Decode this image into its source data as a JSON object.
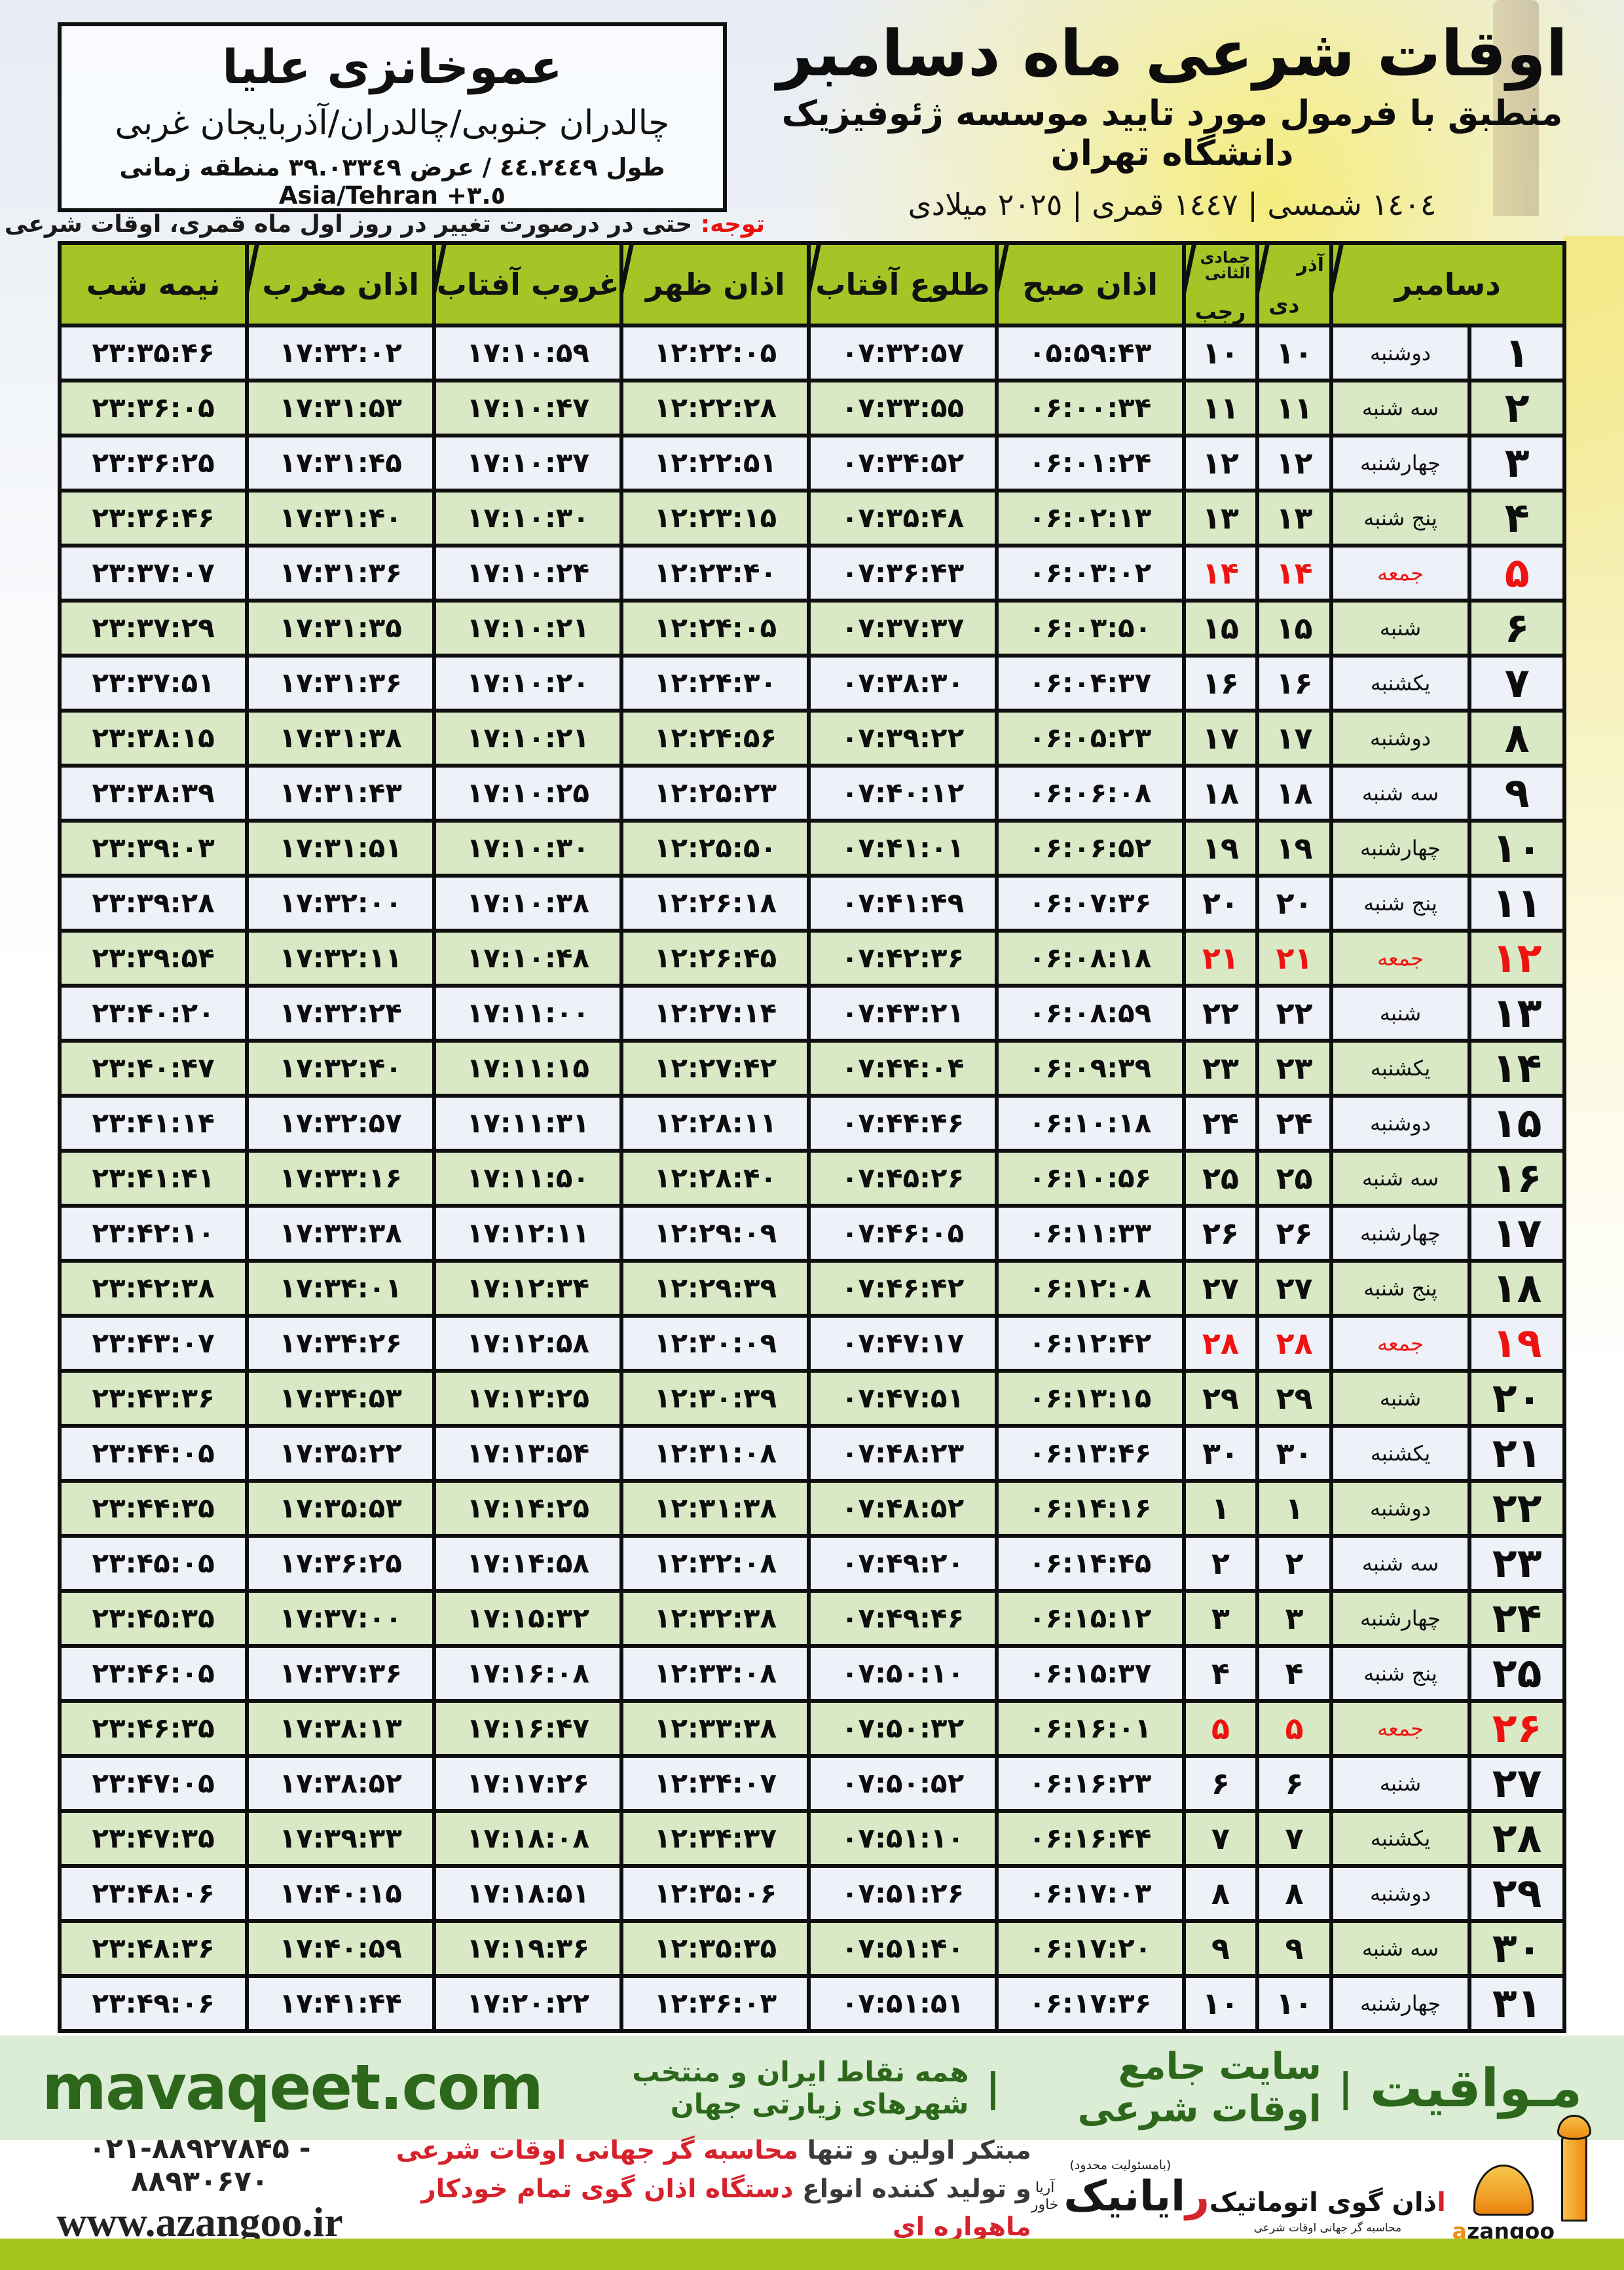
{
  "header": {
    "title": "اوقات شرعی ماه دسامبر",
    "subtitle": "منطبق با فرمول مورد تایید موسسه ژئوفیزیک دانشگاه تهران",
    "calendar_line": "١٤٠٤ شمسی | ١٤٤٧ قمری | ٢٠٢٥ میلادی"
  },
  "location_box": {
    "name": "عموخانزی علیا",
    "region": "چالدران جنوبی/چالدران/آذربایجان غربی",
    "coords": "طول ٤٤.٢٤٤٩ / عرض ٣٩.٠٣٣٤٩ منطقه زمانی",
    "timezone": "Asia/Tehran +٣.٥"
  },
  "note": {
    "label": "توجه:",
    "text": " حتی در درصورت تغییر در روز اول ماه قمری، اوقات شرعی کماکان برای روزهای شمسی و میلادی معتبر است."
  },
  "table": {
    "headers": {
      "december": "دسامبر",
      "persian_months": [
        "آذر",
        "دی"
      ],
      "hijri_months": [
        "جمادی الثانی",
        "رجب"
      ],
      "fajr": "اذان صبح",
      "sunrise": "طلوع آفتاب",
      "dhuhr": "اذان ظهر",
      "sunset": "غروب آفتاب",
      "maghrib": "اذان مغرب",
      "midnight": "نیمه شب"
    },
    "rows": [
      {
        "day": 1,
        "weekday": "دوشنبه",
        "persian": 10,
        "hijri": 10,
        "fajr": "05:59:43",
        "sunrise": "07:32:57",
        "dhuhr": "12:22:05",
        "sunset": "17:10:59",
        "maghrib": "17:32:02",
        "midnight": "23:35:46",
        "friday": false
      },
      {
        "day": 2,
        "weekday": "سه شنبه",
        "persian": 11,
        "hijri": 11,
        "fajr": "06:00:34",
        "sunrise": "07:33:55",
        "dhuhr": "12:22:28",
        "sunset": "17:10:47",
        "maghrib": "17:31:53",
        "midnight": "23:36:05",
        "friday": false
      },
      {
        "day": 3,
        "weekday": "چهارشنبه",
        "persian": 12,
        "hijri": 12,
        "fajr": "06:01:24",
        "sunrise": "07:34:52",
        "dhuhr": "12:22:51",
        "sunset": "17:10:37",
        "maghrib": "17:31:45",
        "midnight": "23:36:25",
        "friday": false
      },
      {
        "day": 4,
        "weekday": "پنج شنبه",
        "persian": 13,
        "hijri": 13,
        "fajr": "06:02:13",
        "sunrise": "07:35:48",
        "dhuhr": "12:23:15",
        "sunset": "17:10:30",
        "maghrib": "17:31:40",
        "midnight": "23:36:46",
        "friday": false
      },
      {
        "day": 5,
        "weekday": "جمعه",
        "persian": 14,
        "hijri": 14,
        "fajr": "06:03:02",
        "sunrise": "07:36:43",
        "dhuhr": "12:23:40",
        "sunset": "17:10:24",
        "maghrib": "17:31:36",
        "midnight": "23:37:07",
        "friday": true
      },
      {
        "day": 6,
        "weekday": "شنبه",
        "persian": 15,
        "hijri": 15,
        "fajr": "06:03:50",
        "sunrise": "07:37:37",
        "dhuhr": "12:24:05",
        "sunset": "17:10:21",
        "maghrib": "17:31:35",
        "midnight": "23:37:29",
        "friday": false
      },
      {
        "day": 7,
        "weekday": "یکشنبه",
        "persian": 16,
        "hijri": 16,
        "fajr": "06:04:37",
        "sunrise": "07:38:30",
        "dhuhr": "12:24:30",
        "sunset": "17:10:20",
        "maghrib": "17:31:36",
        "midnight": "23:37:51",
        "friday": false
      },
      {
        "day": 8,
        "weekday": "دوشنبه",
        "persian": 17,
        "hijri": 17,
        "fajr": "06:05:23",
        "sunrise": "07:39:22",
        "dhuhr": "12:24:56",
        "sunset": "17:10:21",
        "maghrib": "17:31:38",
        "midnight": "23:38:15",
        "friday": false
      },
      {
        "day": 9,
        "weekday": "سه شنبه",
        "persian": 18,
        "hijri": 18,
        "fajr": "06:06:08",
        "sunrise": "07:40:12",
        "dhuhr": "12:25:23",
        "sunset": "17:10:25",
        "maghrib": "17:31:43",
        "midnight": "23:38:39",
        "friday": false
      },
      {
        "day": 10,
        "weekday": "چهارشنبه",
        "persian": 19,
        "hijri": 19,
        "fajr": "06:06:52",
        "sunrise": "07:41:01",
        "dhuhr": "12:25:50",
        "sunset": "17:10:30",
        "maghrib": "17:31:51",
        "midnight": "23:39:03",
        "friday": false
      },
      {
        "day": 11,
        "weekday": "پنج شنبه",
        "persian": 20,
        "hijri": 20,
        "fajr": "06:07:36",
        "sunrise": "07:41:49",
        "dhuhr": "12:26:18",
        "sunset": "17:10:38",
        "maghrib": "17:32:00",
        "midnight": "23:39:28",
        "friday": false
      },
      {
        "day": 12,
        "weekday": "جمعه",
        "persian": 21,
        "hijri": 21,
        "fajr": "06:08:18",
        "sunrise": "07:42:36",
        "dhuhr": "12:26:45",
        "sunset": "17:10:48",
        "maghrib": "17:32:11",
        "midnight": "23:39:54",
        "friday": true
      },
      {
        "day": 13,
        "weekday": "شنبه",
        "persian": 22,
        "hijri": 22,
        "fajr": "06:08:59",
        "sunrise": "07:43:21",
        "dhuhr": "12:27:14",
        "sunset": "17:11:00",
        "maghrib": "17:32:24",
        "midnight": "23:40:20",
        "friday": false
      },
      {
        "day": 14,
        "weekday": "یکشنبه",
        "persian": 23,
        "hijri": 23,
        "fajr": "06:09:39",
        "sunrise": "07:44:04",
        "dhuhr": "12:27:42",
        "sunset": "17:11:15",
        "maghrib": "17:32:40",
        "midnight": "23:40:47",
        "friday": false
      },
      {
        "day": 15,
        "weekday": "دوشنبه",
        "persian": 24,
        "hijri": 24,
        "fajr": "06:10:18",
        "sunrise": "07:44:46",
        "dhuhr": "12:28:11",
        "sunset": "17:11:31",
        "maghrib": "17:32:57",
        "midnight": "23:41:14",
        "friday": false
      },
      {
        "day": 16,
        "weekday": "سه شنبه",
        "persian": 25,
        "hijri": 25,
        "fajr": "06:10:56",
        "sunrise": "07:45:26",
        "dhuhr": "12:28:40",
        "sunset": "17:11:50",
        "maghrib": "17:33:16",
        "midnight": "23:41:41",
        "friday": false
      },
      {
        "day": 17,
        "weekday": "چهارشنبه",
        "persian": 26,
        "hijri": 26,
        "fajr": "06:11:33",
        "sunrise": "07:46:05",
        "dhuhr": "12:29:09",
        "sunset": "17:12:11",
        "maghrib": "17:33:38",
        "midnight": "23:42:10",
        "friday": false
      },
      {
        "day": 18,
        "weekday": "پنج شنبه",
        "persian": 27,
        "hijri": 27,
        "fajr": "06:12:08",
        "sunrise": "07:46:42",
        "dhuhr": "12:29:39",
        "sunset": "17:12:34",
        "maghrib": "17:34:01",
        "midnight": "23:42:38",
        "friday": false
      },
      {
        "day": 19,
        "weekday": "جمعه",
        "persian": 28,
        "hijri": 28,
        "fajr": "06:12:42",
        "sunrise": "07:47:17",
        "dhuhr": "12:30:09",
        "sunset": "17:12:58",
        "maghrib": "17:34:26",
        "midnight": "23:43:07",
        "friday": true
      },
      {
        "day": 20,
        "weekday": "شنبه",
        "persian": 29,
        "hijri": 29,
        "fajr": "06:13:15",
        "sunrise": "07:47:51",
        "dhuhr": "12:30:39",
        "sunset": "17:13:25",
        "maghrib": "17:34:53",
        "midnight": "23:43:36",
        "friday": false
      },
      {
        "day": 21,
        "weekday": "یکشنبه",
        "persian": 30,
        "hijri": 30,
        "fajr": "06:13:46",
        "sunrise": "07:48:23",
        "dhuhr": "12:31:08",
        "sunset": "17:13:54",
        "maghrib": "17:35:22",
        "midnight": "23:44:05",
        "friday": false
      },
      {
        "day": 22,
        "weekday": "دوشنبه",
        "persian": 1,
        "hijri": 1,
        "fajr": "06:14:16",
        "sunrise": "07:48:52",
        "dhuhr": "12:31:38",
        "sunset": "17:14:25",
        "maghrib": "17:35:53",
        "midnight": "23:44:35",
        "friday": false
      },
      {
        "day": 23,
        "weekday": "سه شنبه",
        "persian": 2,
        "hijri": 2,
        "fajr": "06:14:45",
        "sunrise": "07:49:20",
        "dhuhr": "12:32:08",
        "sunset": "17:14:58",
        "maghrib": "17:36:25",
        "midnight": "23:45:05",
        "friday": false
      },
      {
        "day": 24,
        "weekday": "چهارشنبه",
        "persian": 3,
        "hijri": 3,
        "fajr": "06:15:12",
        "sunrise": "07:49:46",
        "dhuhr": "12:32:38",
        "sunset": "17:15:32",
        "maghrib": "17:37:00",
        "midnight": "23:45:35",
        "friday": false
      },
      {
        "day": 25,
        "weekday": "پنج شنبه",
        "persian": 4,
        "hijri": 4,
        "fajr": "06:15:37",
        "sunrise": "07:50:10",
        "dhuhr": "12:33:08",
        "sunset": "17:16:08",
        "maghrib": "17:37:36",
        "midnight": "23:46:05",
        "friday": false
      },
      {
        "day": 26,
        "weekday": "جمعه",
        "persian": 5,
        "hijri": 5,
        "fajr": "06:16:01",
        "sunrise": "07:50:32",
        "dhuhr": "12:33:38",
        "sunset": "17:16:47",
        "maghrib": "17:38:13",
        "midnight": "23:46:35",
        "friday": true
      },
      {
        "day": 27,
        "weekday": "شنبه",
        "persian": 6,
        "hijri": 6,
        "fajr": "06:16:23",
        "sunrise": "07:50:52",
        "dhuhr": "12:34:07",
        "sunset": "17:17:26",
        "maghrib": "17:38:52",
        "midnight": "23:47:05",
        "friday": false
      },
      {
        "day": 28,
        "weekday": "یکشنبه",
        "persian": 7,
        "hijri": 7,
        "fajr": "06:16:44",
        "sunrise": "07:51:10",
        "dhuhr": "12:34:37",
        "sunset": "17:18:08",
        "maghrib": "17:39:33",
        "midnight": "23:47:35",
        "friday": false
      },
      {
        "day": 29,
        "weekday": "دوشنبه",
        "persian": 8,
        "hijri": 8,
        "fajr": "06:17:03",
        "sunrise": "07:51:26",
        "dhuhr": "12:35:06",
        "sunset": "17:18:51",
        "maghrib": "17:40:15",
        "midnight": "23:48:06",
        "friday": false
      },
      {
        "day": 30,
        "weekday": "سه شنبه",
        "persian": 9,
        "hijri": 9,
        "fajr": "06:17:20",
        "sunrise": "07:51:40",
        "dhuhr": "12:35:35",
        "sunset": "17:19:36",
        "maghrib": "17:40:59",
        "midnight": "23:48:36",
        "friday": false
      },
      {
        "day": 31,
        "weekday": "چهارشنبه",
        "persian": 10,
        "hijri": 10,
        "fajr": "06:17:36",
        "sunrise": "07:51:51",
        "dhuhr": "12:36:03",
        "sunset": "17:20:22",
        "maghrib": "17:41:44",
        "midnight": "23:49:06",
        "friday": false
      }
    ]
  },
  "banner": {
    "site": "mavaqeet.com",
    "brand": "مـواقیت",
    "separator": "|",
    "tagline1": "سایت جامع اوقات شرعی",
    "tagline2": "همه نقاط ایران و منتخب شهرهای زیارتی جهان"
  },
  "footer": {
    "phone": "۰۲۱-۸۸۹۲۷۸۴۵ - ۸۸۹۳۰۶۷۰",
    "website": "www.azangoo.ir",
    "slogan_line1_black": "مبتکر اولین و تنها ",
    "slogan_line1_red": "محاسبه گر جهانی اوقات شرعی",
    "slogan_line2_black": "و تولید کننده انواع ",
    "slogan_line2_red": "دستگاه اذان گوی تمام خودکار ماهواره ای",
    "rayanik": {
      "note": "(بامسئولیت محدود)",
      "name_first": "ر",
      "name_rest": "ایانیک",
      "side_top": "آریا",
      "side_bottom": "خاور"
    },
    "azangoo": {
      "name_first": "ا",
      "name_rest": "ذان گوی اتوماتیک",
      "tagline": "محاسبه گر جهانی اوقات شرعی",
      "latin_first": "a",
      "latin_rest": "zangoo"
    }
  },
  "colors": {
    "header_green": "#a5c527",
    "row_green": "#d9e9c6",
    "row_light": "#eef1f7",
    "friday_red": "#ee1310",
    "banner_bg": "#dbedd5",
    "banner_text": "#2c671c",
    "lime_bar": "#a6c51b",
    "logo_orange": "#ee8d12"
  }
}
